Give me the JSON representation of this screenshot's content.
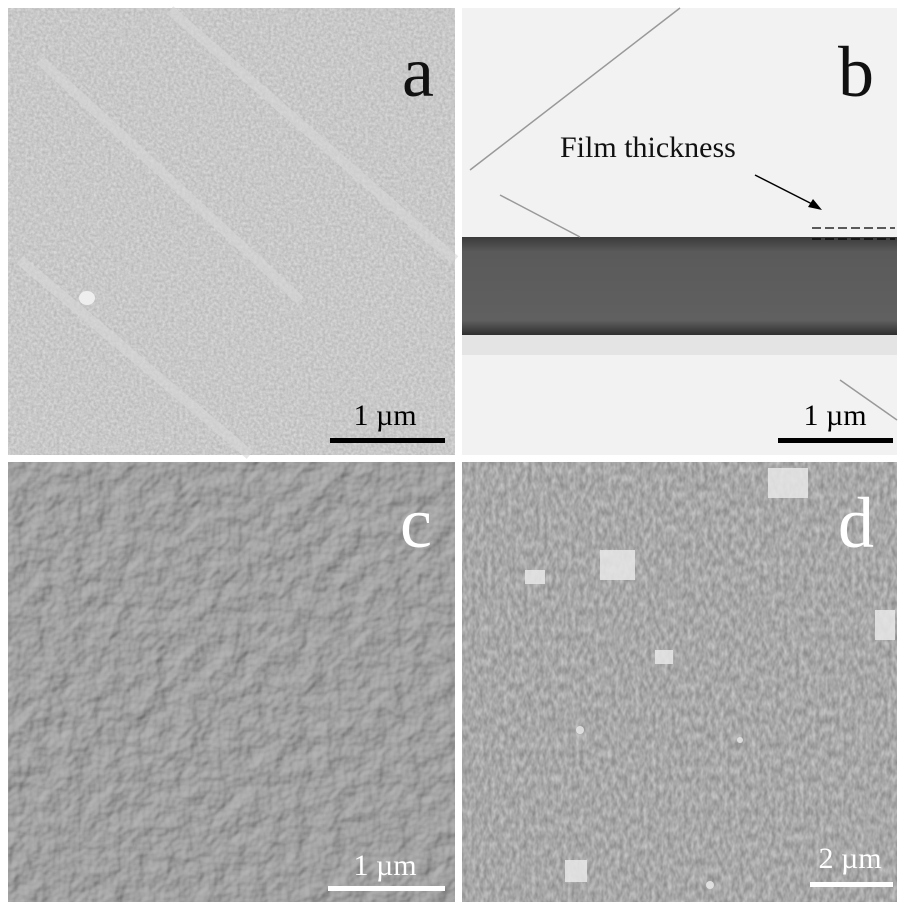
{
  "panels": [
    {
      "label": "a",
      "scale_bar": "1 µm"
    },
    {
      "label": "b",
      "scale_bar": "1 µm",
      "annotation": "Film thickness"
    },
    {
      "label": "c",
      "scale_bar": "1 µm"
    },
    {
      "label": "d",
      "scale_bar": "2 µm"
    }
  ]
}
